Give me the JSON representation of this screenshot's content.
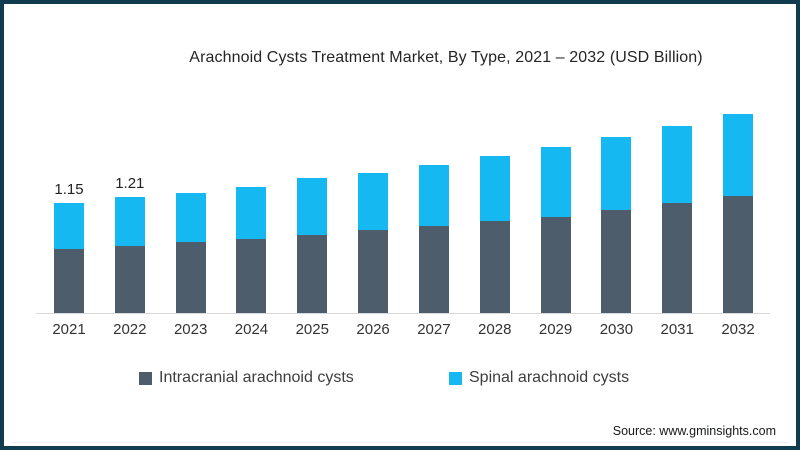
{
  "frame": {
    "border_color": "#113c50",
    "background": "#ffffff"
  },
  "chart_data": {
    "type": "bar",
    "stacked": true,
    "title": "Arachnoid Cysts Treatment Market, By Type, 2021 – 2032 (USD Billion)",
    "categories": [
      "2021",
      "2022",
      "2023",
      "2024",
      "2025",
      "2026",
      "2027",
      "2028",
      "2029",
      "2030",
      "2031",
      "2032"
    ],
    "series": [
      {
        "name": "Intracranial arachnoid cysts",
        "color": "#4e5d6c",
        "values": [
          0.67,
          0.7,
          0.74,
          0.77,
          0.82,
          0.87,
          0.91,
          0.96,
          1.01,
          1.08,
          1.15,
          1.23
        ]
      },
      {
        "name": "Spinal arachnoid cysts",
        "color": "#15b8f1",
        "values": [
          0.48,
          0.51,
          0.52,
          0.55,
          0.59,
          0.6,
          0.64,
          0.68,
          0.73,
          0.76,
          0.81,
          0.85
        ]
      }
    ],
    "totals": [
      1.15,
      1.21,
      1.26,
      1.32,
      1.41,
      1.47,
      1.55,
      1.64,
      1.74,
      1.84,
      1.96,
      2.08
    ],
    "data_labels": [
      "1.15",
      "1.21",
      "",
      "",
      "",
      "",
      "",
      "",
      "",
      "",
      "",
      ""
    ],
    "xlabel": "",
    "ylabel": "",
    "ylim": [
      0,
      2.2
    ],
    "grid": false,
    "legend_position": "bottom",
    "axis_line_color": "#d9d9d9"
  },
  "source": {
    "text": "Source: www.gminsights.com"
  }
}
